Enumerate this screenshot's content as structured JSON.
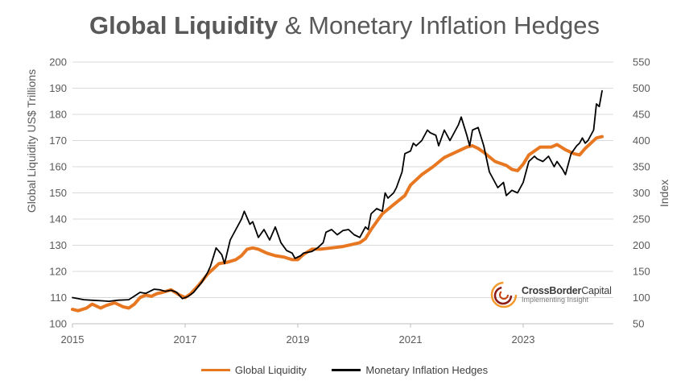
{
  "colors": {
    "liquidity": "#E87722",
    "hedges": "#000000",
    "grid": "#d9d9d9",
    "brand_red": "#8B1A1A",
    "brand_orange": "#F29A2E"
  },
  "title": {
    "bold": "Global Liquidity",
    "rest": " & Monetary Inflation Hedges"
  },
  "logo": {
    "name_bold": "CrossBorder",
    "name_light": "Capital",
    "tagline": "Implementing Insight",
    "icon": "swirl-logo-icon"
  },
  "chart_data": {
    "type": "line",
    "title": "Global Liquidity & Monetary Inflation Hedges",
    "xlabel": "",
    "ylabel_left": "Global Liquidity US$ Trillions",
    "ylabel_right": "Index",
    "xlim": [
      2015,
      2024.6
    ],
    "ylim_left": [
      100,
      200
    ],
    "ylim_right": [
      50,
      550
    ],
    "x_ticks": [
      "2015",
      "2017",
      "2019",
      "2021",
      "2023"
    ],
    "y_ticks_left": [
      "100",
      "110",
      "120",
      "130",
      "140",
      "150",
      "160",
      "170",
      "180",
      "190",
      "200"
    ],
    "y_ticks_right": [
      "50",
      "100",
      "150",
      "200",
      "250",
      "300",
      "350",
      "400",
      "450",
      "500",
      "550"
    ],
    "legend": [
      "Global Liquidity",
      "Monetary Inflation Hedges"
    ],
    "grid": true,
    "series": [
      {
        "name": "Global Liquidity",
        "axis": "left",
        "x": [
          2015.0,
          2015.1,
          2015.25,
          2015.35,
          2015.5,
          2015.6,
          2015.75,
          2015.9,
          2016.0,
          2016.1,
          2016.2,
          2016.3,
          2016.4,
          2016.5,
          2016.6,
          2016.75,
          2016.9,
          2017.0,
          2017.1,
          2017.25,
          2017.4,
          2017.5,
          2017.6,
          2017.75,
          2017.9,
          2018.0,
          2018.1,
          2018.2,
          2018.3,
          2018.45,
          2018.6,
          2018.75,
          2018.9,
          2019.0,
          2019.1,
          2019.25,
          2019.4,
          2019.6,
          2019.8,
          2020.0,
          2020.1,
          2020.2,
          2020.3,
          2020.5,
          2020.7,
          2020.9,
          2021.0,
          2021.2,
          2021.4,
          2021.6,
          2021.8,
          2022.0,
          2022.1,
          2022.2,
          2022.3,
          2022.5,
          2022.7,
          2022.8,
          2022.9,
          2023.0,
          2023.1,
          2023.3,
          2023.5,
          2023.6,
          2023.75,
          2023.9,
          2024.0,
          2024.1,
          2024.2,
          2024.3,
          2024.4
        ],
        "y": [
          105.5,
          105.0,
          106.0,
          107.5,
          106.0,
          107.0,
          108.0,
          106.5,
          106.0,
          107.5,
          110.0,
          111.0,
          110.5,
          111.5,
          112.0,
          113.0,
          111.0,
          110.0,
          111.5,
          115.0,
          119.0,
          121.0,
          123.0,
          123.5,
          124.5,
          126.0,
          128.5,
          129.0,
          128.5,
          127.0,
          126.0,
          125.5,
          124.5,
          124.5,
          126.5,
          128.5,
          128.5,
          129.0,
          129.5,
          130.5,
          131.0,
          132.5,
          136.0,
          142.0,
          145.5,
          149.0,
          153.0,
          157.0,
          160.0,
          163.5,
          165.5,
          167.5,
          168.0,
          167.0,
          165.5,
          162.0,
          160.5,
          159.0,
          158.5,
          161.0,
          164.5,
          167.5,
          167.5,
          168.5,
          166.5,
          165.0,
          164.5,
          167.0,
          169.0,
          171.0,
          171.5
        ]
      },
      {
        "name": "Monetary Inflation Hedges",
        "axis": "right",
        "x": [
          2015.0,
          2015.1,
          2015.2,
          2015.35,
          2015.5,
          2015.65,
          2015.8,
          2016.0,
          2016.1,
          2016.2,
          2016.3,
          2016.45,
          2016.55,
          2016.65,
          2016.75,
          2016.85,
          2016.95,
          2017.05,
          2017.15,
          2017.3,
          2017.4,
          2017.45,
          2017.55,
          2017.65,
          2017.7,
          2017.8,
          2017.9,
          2018.0,
          2018.05,
          2018.15,
          2018.2,
          2018.3,
          2018.4,
          2018.5,
          2018.6,
          2018.7,
          2018.8,
          2018.9,
          2018.95,
          2019.05,
          2019.1,
          2019.25,
          2019.35,
          2019.45,
          2019.5,
          2019.6,
          2019.7,
          2019.8,
          2019.9,
          2020.0,
          2020.1,
          2020.2,
          2020.25,
          2020.3,
          2020.4,
          2020.5,
          2020.55,
          2020.6,
          2020.7,
          2020.75,
          2020.85,
          2020.9,
          2021.0,
          2021.05,
          2021.1,
          2021.2,
          2021.3,
          2021.35,
          2021.45,
          2021.5,
          2021.6,
          2021.7,
          2021.75,
          2021.85,
          2021.9,
          2022.0,
          2022.05,
          2022.1,
          2022.2,
          2022.3,
          2022.4,
          2022.45,
          2022.55,
          2022.65,
          2022.7,
          2022.8,
          2022.9,
          2023.0,
          2023.1,
          2023.2,
          2023.25,
          2023.35,
          2023.45,
          2023.55,
          2023.6,
          2023.7,
          2023.75,
          2023.85,
          2023.95,
          2024.0,
          2024.05,
          2024.1,
          2024.15,
          2024.2,
          2024.25,
          2024.3,
          2024.35,
          2024.4
        ],
        "y": [
          100,
          98,
          96,
          95,
          94,
          93,
          95,
          96,
          103,
          110,
          108,
          116,
          115,
          112,
          114,
          110,
          98,
          102,
          110,
          130,
          148,
          160,
          195,
          182,
          165,
          210,
          230,
          250,
          265,
          240,
          245,
          215,
          230,
          210,
          235,
          205,
          190,
          185,
          175,
          180,
          185,
          188,
          195,
          205,
          225,
          230,
          220,
          228,
          230,
          220,
          215,
          235,
          230,
          260,
          270,
          265,
          300,
          290,
          300,
          310,
          340,
          375,
          380,
          395,
          390,
          400,
          420,
          415,
          410,
          390,
          420,
          400,
          410,
          430,
          445,
          410,
          390,
          420,
          425,
          390,
          340,
          330,
          310,
          320,
          295,
          305,
          300,
          320,
          360,
          370,
          365,
          360,
          370,
          350,
          360,
          345,
          335,
          375,
          390,
          395,
          405,
          395,
          400,
          410,
          420,
          470,
          465,
          495
        ]
      }
    ]
  }
}
